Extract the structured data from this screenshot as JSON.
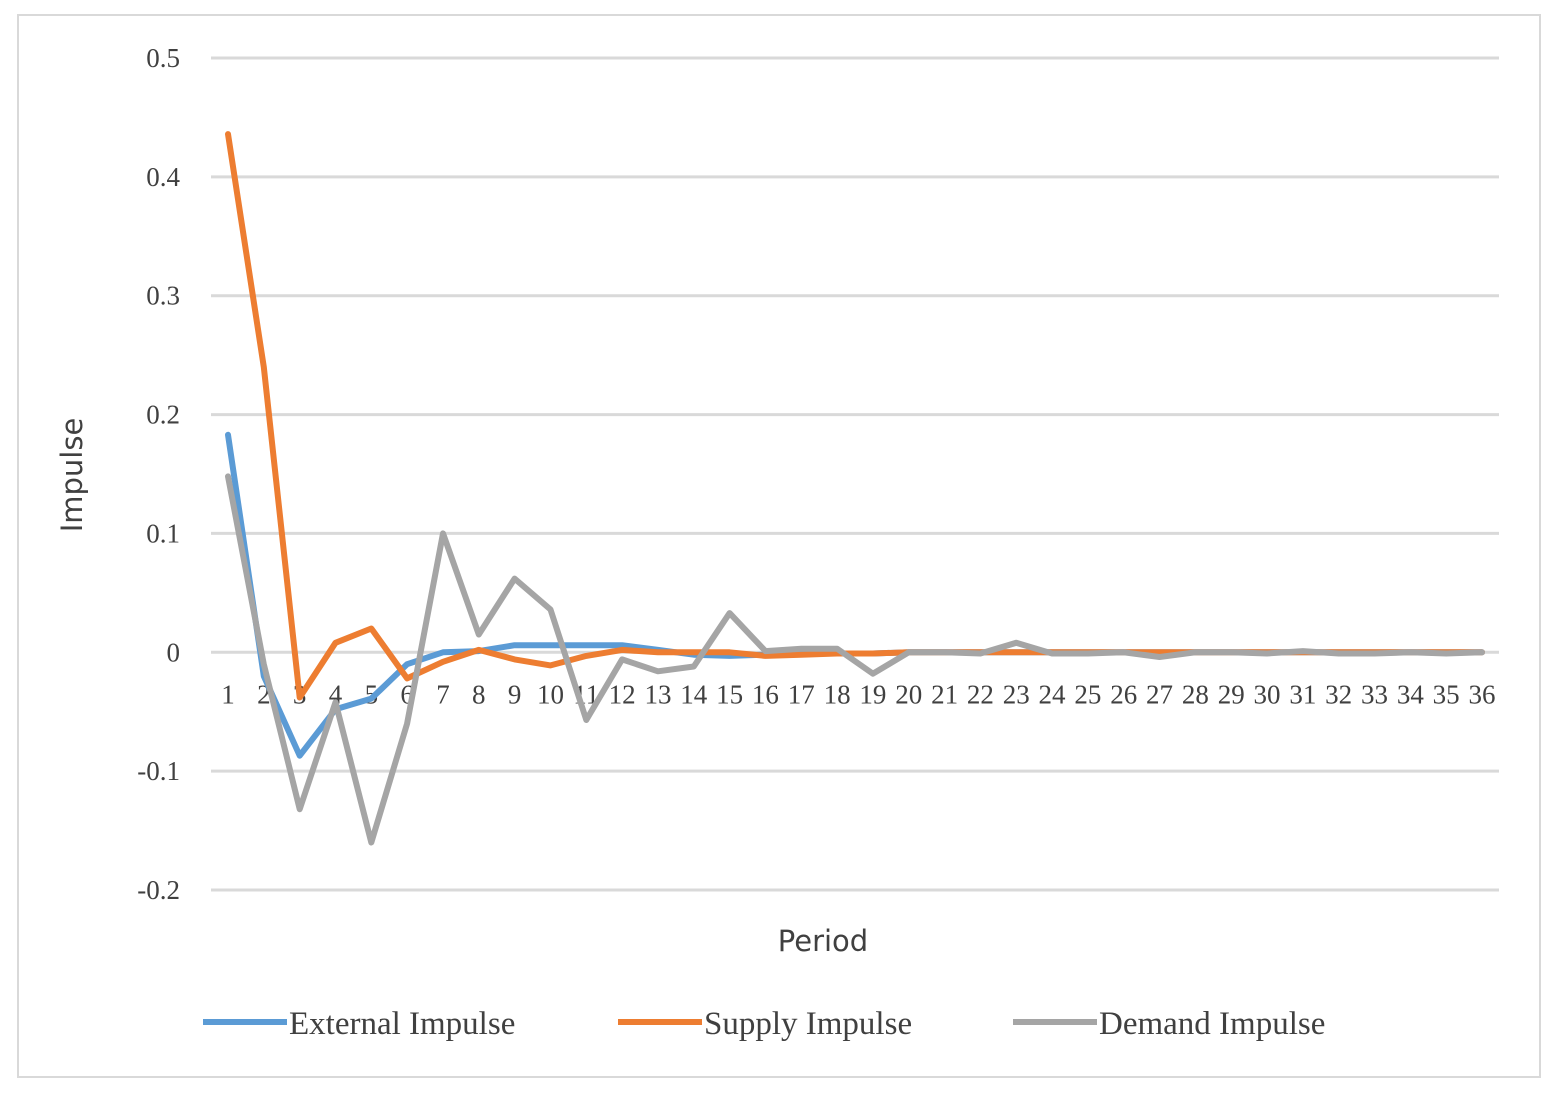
{
  "chart_data": {
    "type": "line",
    "title": "",
    "xlabel": "Period",
    "ylabel": "Impulse",
    "ylim": [
      -0.2,
      0.5
    ],
    "yticks": [
      0.5,
      0.4,
      0.3,
      0.2,
      0.1,
      0,
      -0.1,
      -0.2
    ],
    "ytick_labels": [
      "0.5",
      "0.4",
      "0.3",
      "0.2",
      "0.1",
      "0",
      "-0.1",
      "-0.2"
    ],
    "grid": true,
    "legend_position": "bottom",
    "categories": [
      "1",
      "2",
      "3",
      "4",
      "5",
      "6",
      "7",
      "8",
      "9",
      "10",
      "11",
      "12",
      "13",
      "14",
      "15",
      "16",
      "17",
      "18",
      "19",
      "20",
      "21",
      "22",
      "23",
      "24",
      "25",
      "26",
      "27",
      "28",
      "29",
      "30",
      "31",
      "32",
      "33",
      "34",
      "35",
      "36"
    ],
    "series": [
      {
        "name": "External Impulse",
        "color": "#5b9bd5",
        "values": [
          0.183,
          -0.02,
          -0.087,
          -0.048,
          -0.039,
          -0.01,
          0.0,
          0.001,
          0.006,
          0.006,
          0.006,
          0.006,
          0.002,
          -0.002,
          -0.003,
          -0.002,
          -0.001,
          -0.001,
          -0.001,
          0.0,
          0.0,
          0.0,
          0.0,
          0.0,
          0.0,
          0.0,
          0.0,
          0.0,
          0.0,
          0.0,
          0.0,
          0.0,
          0.0,
          0.0,
          0.0,
          0.0
        ]
      },
      {
        "name": "Supply Impulse",
        "color": "#ed7d31",
        "values": [
          0.436,
          0.24,
          -0.038,
          0.008,
          0.02,
          -0.022,
          -0.008,
          0.002,
          -0.006,
          -0.011,
          -0.003,
          0.002,
          0.0,
          0.0,
          0.0,
          -0.003,
          -0.002,
          -0.001,
          -0.001,
          0.0,
          0.0,
          0.0,
          0.0,
          0.0,
          0.0,
          0.0,
          0.0,
          0.0,
          0.0,
          0.0,
          0.0,
          0.0,
          0.0,
          0.0,
          0.0,
          0.0
        ]
      },
      {
        "name": "Demand Impulse",
        "color": "#a5a5a5",
        "values": [
          0.148,
          -0.01,
          -0.132,
          -0.042,
          -0.16,
          -0.06,
          0.1,
          0.015,
          0.062,
          0.036,
          -0.057,
          -0.006,
          -0.016,
          -0.012,
          0.033,
          0.001,
          0.003,
          0.003,
          -0.018,
          0.0,
          0.0,
          -0.001,
          0.008,
          -0.001,
          -0.001,
          0.0,
          -0.004,
          0.0,
          0.0,
          -0.001,
          0.001,
          -0.001,
          -0.001,
          0.0,
          -0.001,
          0.0
        ]
      }
    ]
  }
}
